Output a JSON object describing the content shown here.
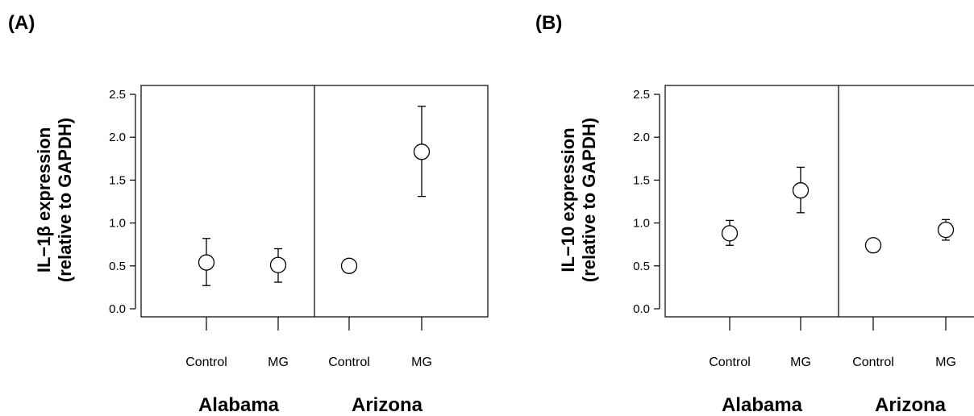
{
  "chart_data": [
    {
      "type": "scatter",
      "panel_label": "(A)",
      "ylabel_lines": [
        "IL−1β expression",
        "(relative to GAPDH)"
      ],
      "ylim": [
        0.0,
        2.5
      ],
      "yticks": [
        "0.0",
        "0.5",
        "1.0",
        "1.5",
        "2.0",
        "2.5"
      ],
      "groups": [
        {
          "name": "Alabama",
          "categories": [
            "Control",
            "MG"
          ]
        },
        {
          "name": "Arizona",
          "categories": [
            "Control",
            "MG"
          ]
        }
      ],
      "points": [
        {
          "group": 0,
          "category": 0,
          "y": 0.54,
          "low": 0.27,
          "high": 0.82
        },
        {
          "group": 0,
          "category": 1,
          "y": 0.51,
          "low": 0.31,
          "high": 0.7
        },
        {
          "group": 1,
          "category": 0,
          "y": 0.5,
          "low": null,
          "high": null
        },
        {
          "group": 1,
          "category": 1,
          "y": 1.83,
          "low": 1.31,
          "high": 2.36
        }
      ]
    },
    {
      "type": "scatter",
      "panel_label": "(B)",
      "ylabel_lines": [
        "IL−10 expression",
        "(relative to GAPDH)"
      ],
      "ylim": [
        0.0,
        2.5
      ],
      "yticks": [
        "0.0",
        "0.5",
        "1.0",
        "1.5",
        "2.0",
        "2.5"
      ],
      "groups": [
        {
          "name": "Alabama",
          "categories": [
            "Control",
            "MG"
          ]
        },
        {
          "name": "Arizona",
          "categories": [
            "Control",
            "MG"
          ]
        }
      ],
      "points": [
        {
          "group": 0,
          "category": 0,
          "y": 0.88,
          "low": 0.74,
          "high": 1.03
        },
        {
          "group": 0,
          "category": 1,
          "y": 1.38,
          "low": 1.12,
          "high": 1.65
        },
        {
          "group": 1,
          "category": 0,
          "y": 0.74,
          "low": null,
          "high": null
        },
        {
          "group": 1,
          "category": 1,
          "y": 0.92,
          "low": 0.8,
          "high": 1.04
        }
      ]
    }
  ]
}
